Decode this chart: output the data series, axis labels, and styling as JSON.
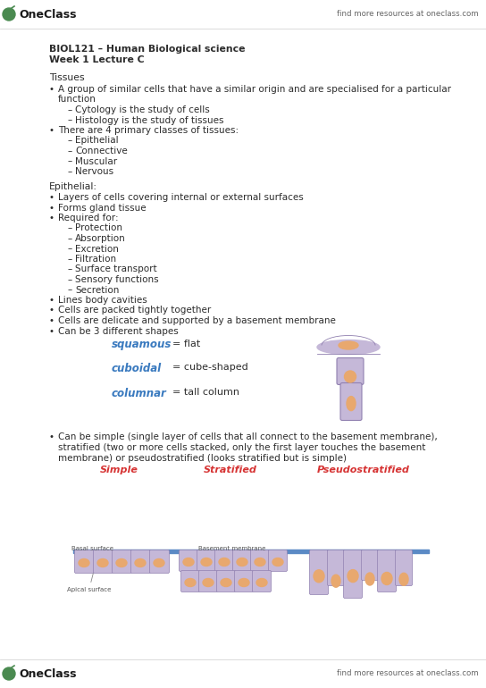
{
  "bg_color": "#ffffff",
  "text_color": "#2c2c2c",
  "green_color": "#4a8a50",
  "blue_color": "#3a7abf",
  "red_color": "#d63333",
  "cell_fill": "#c5b8d8",
  "nucleus_fill": "#e8a86e",
  "basement_fill": "#5b8ac5",
  "cell_edge": "#9080b0",
  "header_line1": "BIOL121 – Human Biological science",
  "header_line2": "Week 1 Lecture C",
  "find_more": "find more resources at oneclass.com"
}
